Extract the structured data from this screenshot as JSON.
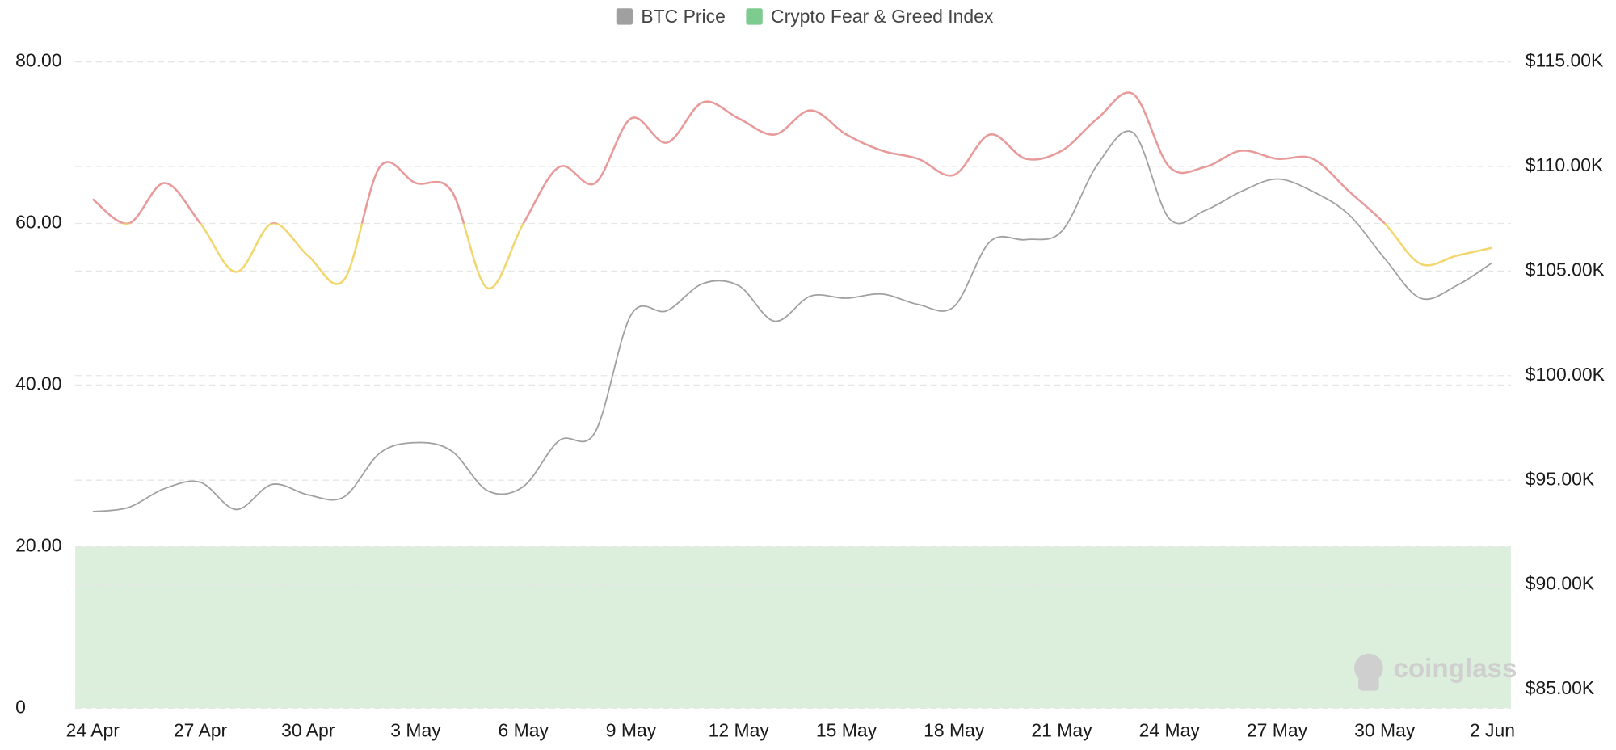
{
  "chart_data": {
    "type": "line",
    "categories": [
      "24 Apr",
      null,
      null,
      "27 Apr",
      null,
      null,
      "30 Apr",
      null,
      null,
      "3 May",
      null,
      null,
      "6 May",
      null,
      null,
      "9 May",
      null,
      null,
      "12 May",
      null,
      null,
      "15 May",
      null,
      null,
      "18 May",
      null,
      null,
      "21 May",
      null,
      null,
      "24 May",
      null,
      null,
      "27 May",
      null,
      null,
      "30 May",
      null,
      null,
      "2 Jun"
    ],
    "series": [
      {
        "name": "BTC Price",
        "color": "#a0a0a0",
        "axis": "y2",
        "values": [
          93500,
          93700,
          94600,
          94900,
          93600,
          94800,
          94300,
          94200,
          96300,
          96800,
          96400,
          94500,
          94700,
          96900,
          97300,
          102900,
          103100,
          104400,
          104300,
          102600,
          103800,
          103700,
          103900,
          103400,
          103300,
          106400,
          106500,
          106900,
          110100,
          111600,
          107500,
          107900,
          108800,
          109400,
          108800,
          107700,
          105600,
          103700,
          104300,
          105400
        ]
      },
      {
        "name": "Crypto Fear & Greed Index",
        "color": "#7ecb8f",
        "line_colors": {
          "above": "#e89a9a",
          "below": "#f2d66e"
        },
        "color_break": 60,
        "values": [
          63,
          60,
          65,
          60,
          54,
          60,
          56,
          53,
          67,
          65,
          64,
          52,
          60,
          67,
          65,
          73,
          70,
          75,
          73,
          71,
          74,
          71,
          69,
          68,
          66,
          71,
          68,
          69,
          73,
          76,
          67,
          67,
          69,
          68,
          68,
          64,
          60,
          55,
          56,
          57
        ]
      }
    ],
    "shaded_band": {
      "range": [
        0,
        20
      ],
      "color": "#dcefdc"
    },
    "ylim": [
      0,
      80
    ],
    "yticks": [
      0,
      {
        "value": 20,
        "label": "20.00"
      },
      {
        "value": 40,
        "label": "40.00"
      },
      {
        "value": 60,
        "label": "60.00"
      },
      {
        "value": 80,
        "label": "80.00"
      }
    ],
    "y2lim": [
      84100,
      115000
    ],
    "y2ticks": [
      {
        "value": 85000,
        "label": "$85.00K"
      },
      {
        "value": 90000,
        "label": "$90.00K"
      },
      {
        "value": 95000,
        "label": "$95.00K"
      },
      {
        "value": 100000,
        "label": "$100.00K"
      },
      {
        "value": 105000,
        "label": "$105.00K"
      },
      {
        "value": 110000,
        "label": "$110.00K"
      },
      {
        "value": 115000,
        "label": "$115.00K"
      }
    ],
    "grid": true,
    "legend": "top",
    "watermark": "coinglass"
  }
}
